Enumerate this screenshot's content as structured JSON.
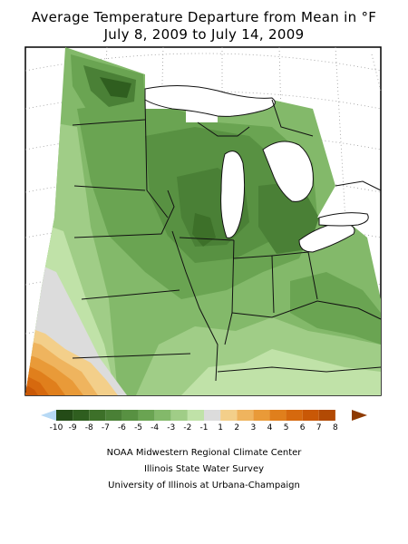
{
  "title_line1": "Average Temperature Departure from Mean in °F",
  "title_line2": "July 8, 2009 to July 14, 2009",
  "legend": {
    "labels": [
      "-10",
      "-9",
      "-8",
      "-7",
      "-6",
      "-5",
      "-4",
      "-3",
      "-2",
      "-1",
      "1",
      "2",
      "3",
      "4",
      "5",
      "6",
      "7",
      "8"
    ],
    "colors": [
      "#b7d9f5",
      "#244b17",
      "#2f5e1f",
      "#3d7029",
      "#4a8036",
      "#589142",
      "#6aa452",
      "#83b96a",
      "#a0cd87",
      "#c0e2a8",
      "#dcdcdc",
      "#f3cf8a",
      "#efb45e",
      "#e99a38",
      "#e07f1c",
      "#d6690e",
      "#c95806",
      "#b24a04",
      "#8e3a02"
    ]
  },
  "credits": {
    "line1": "NOAA Midwestern Regional Climate Center",
    "line2": "Illinois State Water Survey",
    "line3": "University of Illinois at Urbana-Champaign"
  },
  "map": {
    "region": "Midwestern United States",
    "colors": {
      "frame_bg": "#ffffff",
      "base_green": "#83b96a",
      "border_lines": "#111111",
      "grid_lines": "#9a9a9a"
    }
  }
}
